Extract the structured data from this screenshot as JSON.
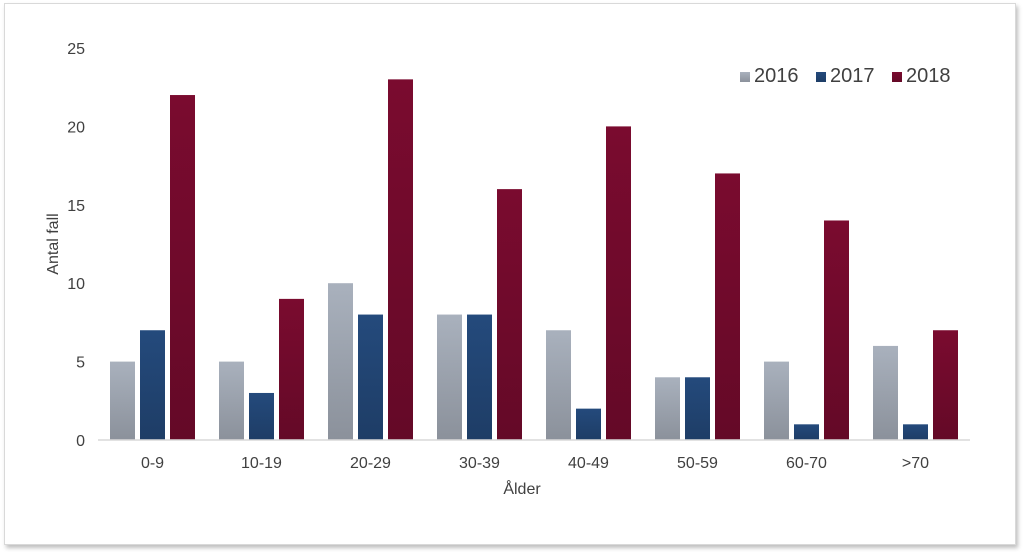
{
  "chart_data": {
    "type": "bar",
    "categories": [
      "0-9",
      "10-19",
      "20-29",
      "30-39",
      "40-49",
      "50-59",
      "60-70",
      ">70"
    ],
    "series": [
      {
        "name": "2016",
        "values": [
          5,
          5,
          10,
          8,
          7,
          4,
          5,
          6
        ],
        "color": "#a9b1bd"
      },
      {
        "name": "2017",
        "values": [
          7,
          3,
          8,
          8,
          2,
          4,
          1,
          1
        ],
        "color": "#244a7c"
      },
      {
        "name": "2018",
        "values": [
          22,
          9,
          23,
          16,
          20,
          17,
          14,
          7
        ],
        "color": "#7a0b2f"
      }
    ],
    "title": "",
    "xlabel": "Ålder",
    "ylabel": "Antal fall",
    "ylim": [
      0,
      25
    ],
    "yticks": [
      0,
      5,
      10,
      15,
      20,
      25
    ],
    "grid": false,
    "legend": "top-right"
  }
}
